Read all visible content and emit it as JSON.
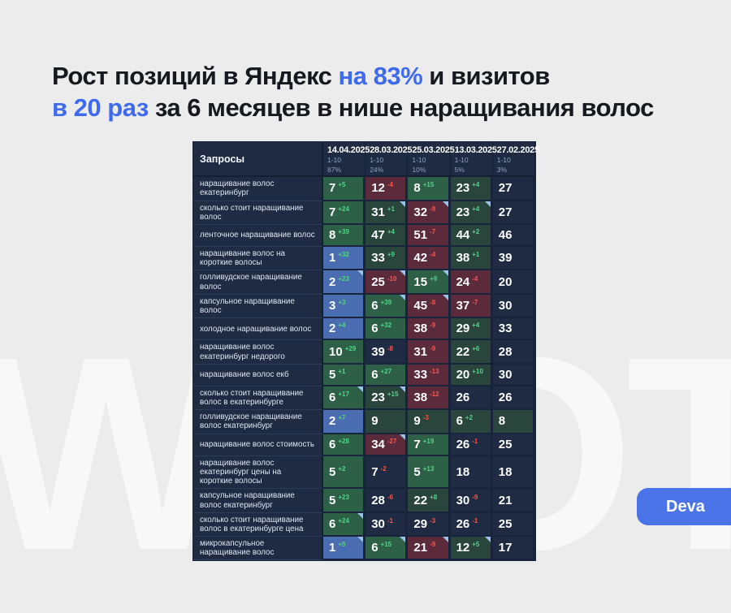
{
  "watermark": "WDOTR",
  "title": {
    "lines": [
      [
        {
          "text": "Рост позиций в Яндекс ",
          "accent": false
        },
        {
          "text": "на 83%",
          "accent": true
        },
        {
          "text": " и визитов",
          "accent": false
        }
      ],
      [
        {
          "text": "в 20 раз",
          "accent": true
        },
        {
          "text": " за 6 месяцев в нише наращивания волос",
          "accent": false
        }
      ]
    ]
  },
  "colors": {
    "accent": "#3e6af0",
    "button": "#4a74e8",
    "table_bg": "#1e2b42",
    "subtle": "#8ba1c2",
    "cell_navy": "#1e2b42",
    "cell_green": "#2e5f47",
    "cell_green_muted": "#2a463c",
    "cell_red": "#5c2b3b",
    "cell_blue": "#4a6cb0",
    "delta_up": "#54d387",
    "delta_down": "#f4564e",
    "marker": "#9cc2e8"
  },
  "brand_button": {
    "label": "Deva"
  },
  "table": {
    "query_header": "Запросы",
    "date_columns": [
      {
        "date": "14.04.2025",
        "range": "1-10",
        "percent": "87%"
      },
      {
        "date": "28.03.2025",
        "range": "1-10",
        "percent": "24%"
      },
      {
        "date": "25.03.2025",
        "range": "1-10",
        "percent": "10%"
      },
      {
        "date": "13.03.2025",
        "range": "1-10",
        "percent": "5%"
      },
      {
        "date": "27.02.2025",
        "range": "1-10",
        "percent": "3%"
      }
    ],
    "rows": [
      {
        "query": "наращивание волос екатеринбург",
        "cells": [
          {
            "v": "7",
            "d": "+5",
            "bg": "green"
          },
          {
            "v": "12",
            "d": "-4",
            "bg": "red"
          },
          {
            "v": "8",
            "d": "+15",
            "bg": "green"
          },
          {
            "v": "23",
            "d": "+4",
            "bg": "green2"
          },
          {
            "v": "27",
            "bg": "navy"
          }
        ]
      },
      {
        "query": "сколько стоит наращивание волос",
        "cells": [
          {
            "v": "7",
            "d": "+24",
            "bg": "green"
          },
          {
            "v": "31",
            "d": "+1",
            "bg": "green2",
            "m": true
          },
          {
            "v": "32",
            "d": "-9",
            "bg": "red",
            "m": true
          },
          {
            "v": "23",
            "d": "+4",
            "bg": "green2",
            "m": true
          },
          {
            "v": "27",
            "bg": "navy"
          }
        ]
      },
      {
        "query": "ленточное наращивание волос",
        "cells": [
          {
            "v": "8",
            "d": "+39",
            "bg": "green"
          },
          {
            "v": "47",
            "d": "+4",
            "bg": "green2"
          },
          {
            "v": "51",
            "d": "-7",
            "bg": "red"
          },
          {
            "v": "44",
            "d": "+2",
            "bg": "green2"
          },
          {
            "v": "46",
            "bg": "navy"
          }
        ]
      },
      {
        "query": "наращивание волос на короткие волосы",
        "cells": [
          {
            "v": "1",
            "d": "+32",
            "bg": "blue"
          },
          {
            "v": "33",
            "d": "+9",
            "bg": "green2"
          },
          {
            "v": "42",
            "d": "-4",
            "bg": "red"
          },
          {
            "v": "38",
            "d": "+1",
            "bg": "green2"
          },
          {
            "v": "39",
            "bg": "navy"
          }
        ]
      },
      {
        "query": "голливудское наращивание волос",
        "cells": [
          {
            "v": "2",
            "d": "+23",
            "bg": "blue",
            "m": true
          },
          {
            "v": "25",
            "d": "-10",
            "bg": "red",
            "m": true
          },
          {
            "v": "15",
            "d": "+9",
            "bg": "green",
            "m": true
          },
          {
            "v": "24",
            "d": "-4",
            "bg": "red"
          },
          {
            "v": "20",
            "bg": "navy"
          }
        ]
      },
      {
        "query": "капсульное наращивание волос",
        "cells": [
          {
            "v": "3",
            "d": "+3",
            "bg": "blue"
          },
          {
            "v": "6",
            "d": "+39",
            "bg": "green",
            "m": true
          },
          {
            "v": "45",
            "d": "-8",
            "bg": "red",
            "m": true
          },
          {
            "v": "37",
            "d": "-7",
            "bg": "red"
          },
          {
            "v": "30",
            "bg": "navy"
          }
        ]
      },
      {
        "query": "холодное наращивание волос",
        "cells": [
          {
            "v": "2",
            "d": "+4",
            "bg": "blue"
          },
          {
            "v": "6",
            "d": "+32",
            "bg": "green"
          },
          {
            "v": "38",
            "d": "-9",
            "bg": "red"
          },
          {
            "v": "29",
            "d": "+4",
            "bg": "green2"
          },
          {
            "v": "33",
            "bg": "navy"
          }
        ]
      },
      {
        "query": "наращивание волос екатеринбург недорого",
        "cells": [
          {
            "v": "10",
            "d": "+29",
            "bg": "green"
          },
          {
            "v": "39",
            "d": "-8",
            "bg": "navy"
          },
          {
            "v": "31",
            "d": "-9",
            "bg": "red"
          },
          {
            "v": "22",
            "d": "+6",
            "bg": "green2"
          },
          {
            "v": "28",
            "bg": "navy"
          }
        ]
      },
      {
        "query": "наращивание волос екб",
        "cells": [
          {
            "v": "5",
            "d": "+1",
            "bg": "green"
          },
          {
            "v": "6",
            "d": "+27",
            "bg": "green"
          },
          {
            "v": "33",
            "d": "-13",
            "bg": "red"
          },
          {
            "v": "20",
            "d": "+10",
            "bg": "green2"
          },
          {
            "v": "30",
            "bg": "navy"
          }
        ]
      },
      {
        "query": "сколько стоит наращивание волос в екатеринбурге",
        "cells": [
          {
            "v": "6",
            "d": "+17",
            "bg": "green",
            "m": true
          },
          {
            "v": "23",
            "d": "+15",
            "bg": "green2",
            "m": true
          },
          {
            "v": "38",
            "d": "-12",
            "bg": "red"
          },
          {
            "v": "26",
            "bg": "navy"
          },
          {
            "v": "26",
            "bg": "navy"
          }
        ]
      },
      {
        "query": "голливудское наращивание волос екатеринбург",
        "cells": [
          {
            "v": "2",
            "d": "+7",
            "bg": "blue"
          },
          {
            "v": "9",
            "bg": "green2"
          },
          {
            "v": "9",
            "d": "-3",
            "bg": "green2"
          },
          {
            "v": "6",
            "d": "+2",
            "bg": "green2"
          },
          {
            "v": "8",
            "bg": "green2"
          }
        ]
      },
      {
        "query": "наращивание волос стоимость",
        "cells": [
          {
            "v": "6",
            "d": "+28",
            "bg": "green"
          },
          {
            "v": "34",
            "d": "-27",
            "bg": "red",
            "m": true
          },
          {
            "v": "7",
            "d": "+19",
            "bg": "green"
          },
          {
            "v": "26",
            "d": "-1",
            "bg": "navy"
          },
          {
            "v": "25",
            "bg": "navy"
          }
        ]
      },
      {
        "query": "наращивание волос екатеринбург цены на короткие волосы",
        "cells": [
          {
            "v": "5",
            "d": "+2",
            "bg": "green"
          },
          {
            "v": "7",
            "d": "-2",
            "bg": "navy"
          },
          {
            "v": "5",
            "d": "+13",
            "bg": "green"
          },
          {
            "v": "18",
            "bg": "navy"
          },
          {
            "v": "18",
            "bg": "navy"
          }
        ]
      },
      {
        "query": "капсульное наращивание волос екатеринбург",
        "cells": [
          {
            "v": "5",
            "d": "+23",
            "bg": "green"
          },
          {
            "v": "28",
            "d": "-6",
            "bg": "navy"
          },
          {
            "v": "22",
            "d": "+8",
            "bg": "green2"
          },
          {
            "v": "30",
            "d": "-9",
            "bg": "navy"
          },
          {
            "v": "21",
            "bg": "navy"
          }
        ]
      },
      {
        "query": "сколько стоит наращивание волос в екатеринбурге цена",
        "cells": [
          {
            "v": "6",
            "d": "+24",
            "bg": "green",
            "m": true
          },
          {
            "v": "30",
            "d": "-1",
            "bg": "navy"
          },
          {
            "v": "29",
            "d": "-3",
            "bg": "navy"
          },
          {
            "v": "26",
            "d": "-1",
            "bg": "navy"
          },
          {
            "v": "25",
            "bg": "navy"
          }
        ]
      },
      {
        "query": "микрокапсульное наращивание волос",
        "cells": [
          {
            "v": "1",
            "d": "+5",
            "bg": "blue",
            "m": true
          },
          {
            "v": "6",
            "d": "+15",
            "bg": "green",
            "m": true
          },
          {
            "v": "21",
            "d": "-9",
            "bg": "red",
            "m": true
          },
          {
            "v": "12",
            "d": "+5",
            "bg": "green2",
            "m": true
          },
          {
            "v": "17",
            "bg": "navy"
          }
        ]
      }
    ]
  }
}
